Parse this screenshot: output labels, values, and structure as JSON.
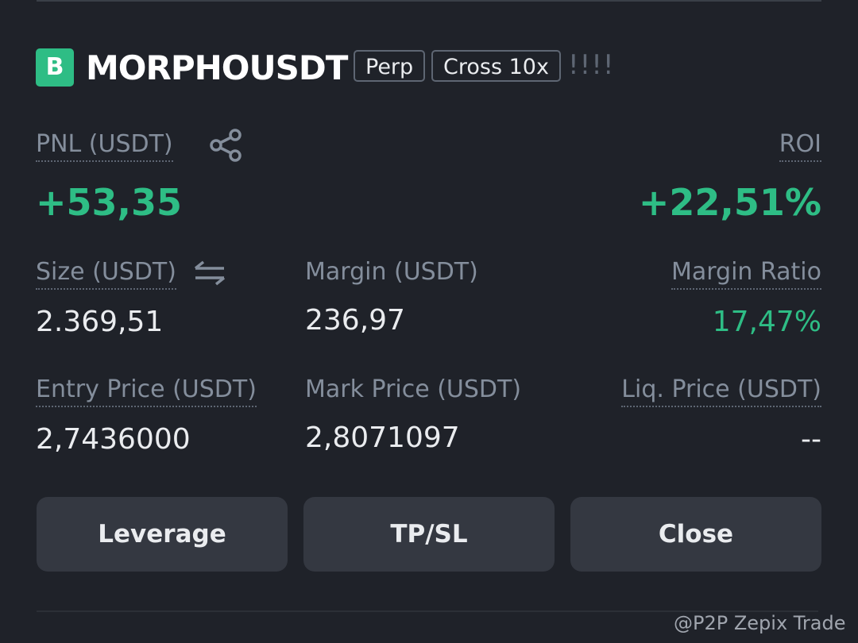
{
  "header": {
    "badge": "B",
    "symbol": "MORPHOUSDT",
    "tags": [
      "Perp",
      "Cross 10x"
    ],
    "signal": "!!!!"
  },
  "pnl": {
    "label": "PNL (USDT)",
    "value": "+53,35"
  },
  "roi": {
    "label": "ROI",
    "value": "+22,51%"
  },
  "fields": [
    {
      "label": "Size (USDT)",
      "value": "2.369,51"
    },
    {
      "label": "Margin (USDT)",
      "value": "236,97"
    },
    {
      "label": "Margin Ratio",
      "value": "17,47%"
    },
    {
      "label": "Entry Price (USDT)",
      "value": "2,7436000"
    },
    {
      "label": "Mark Price (USDT)",
      "value": "2,8071097"
    },
    {
      "label": "Liq. Price (USDT)",
      "value": "--"
    }
  ],
  "buttons": [
    "Leverage",
    "TP/SL",
    "Close"
  ],
  "watermark": "@P2P Zepix Trade"
}
